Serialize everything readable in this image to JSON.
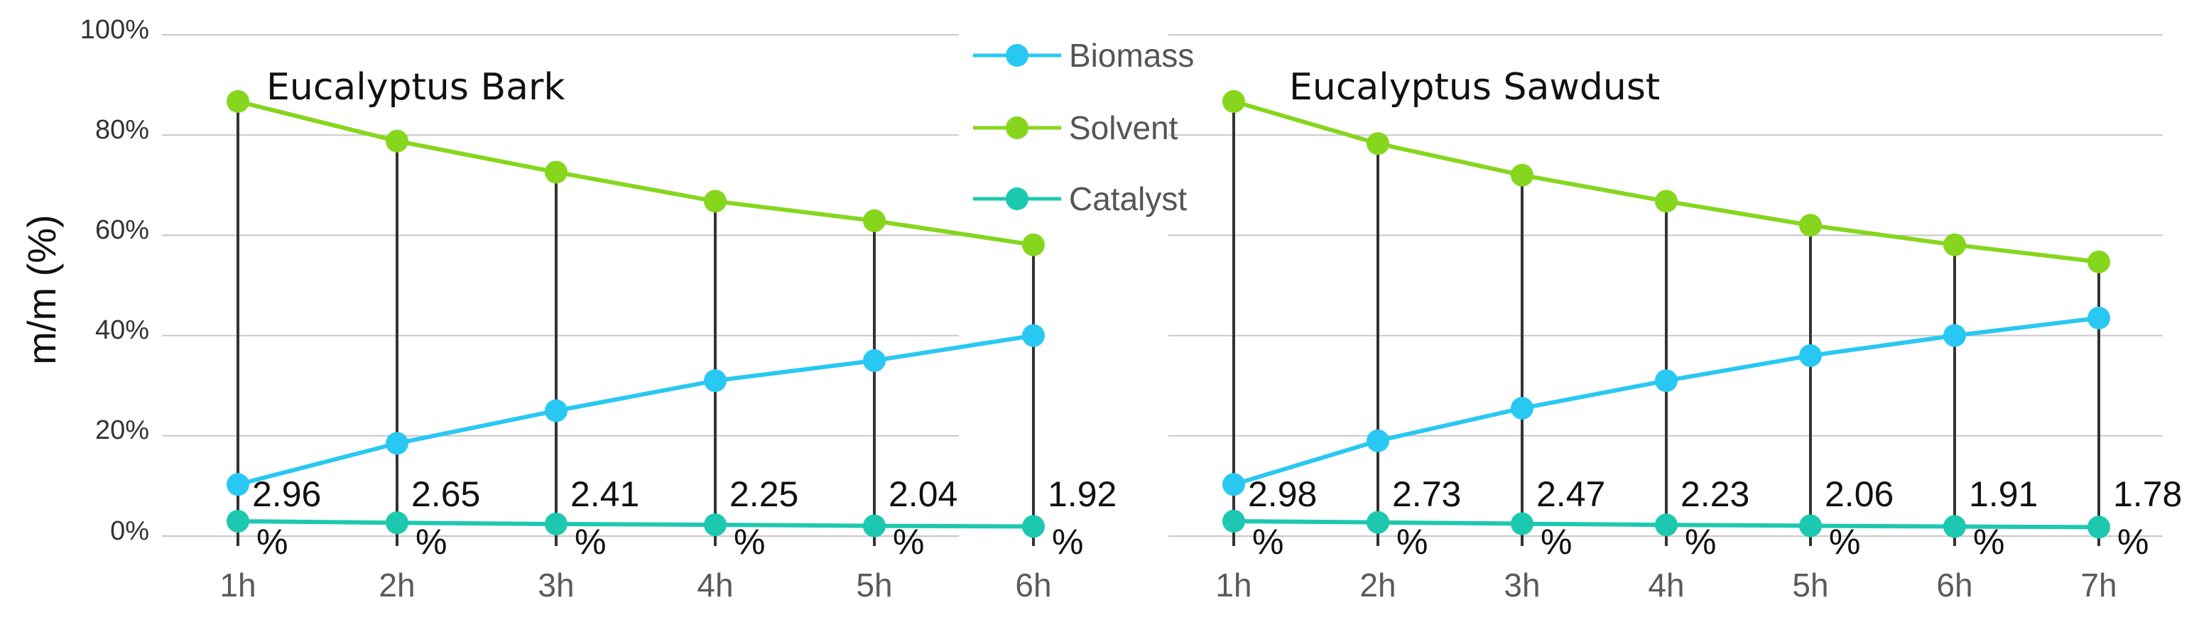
{
  "colors": {
    "biomass": "#29c8f2",
    "solvent": "#86d61e",
    "catalyst": "#1dc8b0",
    "gridline": "#c8c8c8",
    "droplines": "#333333"
  },
  "y_axis": {
    "label": "m/m (%)",
    "ticks": [
      "0%",
      "20%",
      "40%",
      "60%",
      "80%",
      "100%"
    ]
  },
  "legend": {
    "entries": [
      "Biomass",
      "Solvent",
      "Catalyst"
    ]
  },
  "chart_data": [
    {
      "type": "line",
      "title": "Eucalyptus Bark",
      "ylabel": "m/m (%)",
      "ylim": [
        0,
        100
      ],
      "categories": [
        "1h",
        "2h",
        "3h",
        "4h",
        "5h",
        "6h"
      ],
      "series": [
        {
          "name": "Biomass",
          "values": [
            10.3,
            18.5,
            25.0,
            31.0,
            35.0,
            40.0
          ]
        },
        {
          "name": "Solvent",
          "values": [
            86.7,
            78.8,
            72.6,
            66.8,
            62.9,
            58.1
          ]
        },
        {
          "name": "Catalyst",
          "values": [
            2.96,
            2.65,
            2.41,
            2.25,
            2.04,
            1.92
          ]
        }
      ],
      "catalyst_labels": [
        {
          "num": "2.96",
          "unit": "%"
        },
        {
          "num": "2.65",
          "unit": "%"
        },
        {
          "num": "2.41",
          "unit": "%"
        },
        {
          "num": "2.25",
          "unit": "%"
        },
        {
          "num": "2.04",
          "unit": "%"
        },
        {
          "num": "1.92",
          "unit": "%"
        }
      ]
    },
    {
      "type": "line",
      "title": "Eucalyptus Sawdust",
      "ylabel": "m/m (%)",
      "ylim": [
        0,
        100
      ],
      "categories": [
        "1h",
        "2h",
        "3h",
        "4h",
        "5h",
        "6h",
        "7h"
      ],
      "series": [
        {
          "name": "Biomass",
          "values": [
            10.3,
            19.0,
            25.5,
            31.0,
            36.0,
            40.0,
            43.5
          ]
        },
        {
          "name": "Solvent",
          "values": [
            86.7,
            78.3,
            72.0,
            66.8,
            62.0,
            58.1,
            54.7
          ]
        },
        {
          "name": "Catalyst",
          "values": [
            2.98,
            2.73,
            2.47,
            2.23,
            2.06,
            1.91,
            1.78
          ]
        }
      ],
      "catalyst_labels": [
        {
          "num": "2.98",
          "unit": "%"
        },
        {
          "num": "2.73",
          "unit": "%"
        },
        {
          "num": "2.47",
          "unit": "%"
        },
        {
          "num": "2.23",
          "unit": "%"
        },
        {
          "num": "2.06",
          "unit": "%"
        },
        {
          "num": "1.91",
          "unit": "%"
        },
        {
          "num": "1.78",
          "unit": "%"
        }
      ]
    }
  ]
}
